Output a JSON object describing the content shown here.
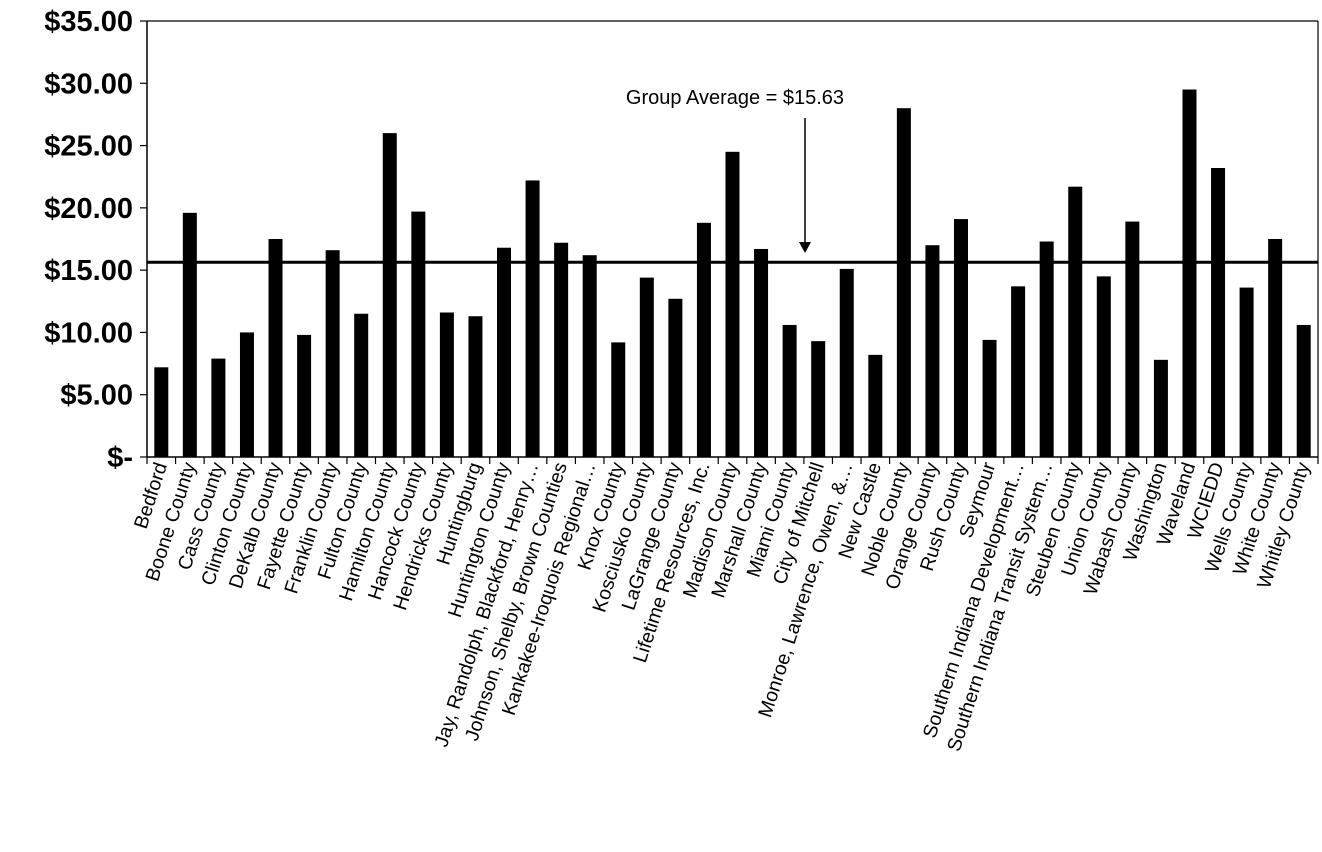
{
  "chart_data": {
    "type": "bar",
    "categories": [
      "Bedford",
      "Boone County",
      "Cass County",
      "Clinton County",
      "DeKalb County",
      "Fayette County",
      "Franklin County",
      "Fulton County",
      "Hamilton County",
      "Hancock County",
      "Hendricks County",
      "Huntingburg",
      "Huntington County",
      "Jay, Randolph, Blackford, Henry…",
      "Johnson, Shelby, Brown Counties",
      "Kankakee-Iroquois Regional…",
      "Knox County",
      "Kosciusko County",
      "LaGrange County",
      "Lifetime Resources, Inc.",
      "Madison County",
      "Marshall County",
      "Miami County",
      "City of Mitchell",
      "Monroe, Lawrence, Owen, &…",
      "New Castle",
      "Noble County",
      "Orange County",
      "Rush County",
      "Seymour",
      "Southern Indiana Development…",
      "Southern Indiana Transit System…",
      "Steuben County",
      "Union County",
      "Wabash County",
      "Washington",
      "Waveland",
      "WCIEDD",
      "Wells County",
      "White County",
      "Whitley County"
    ],
    "values": [
      7.2,
      19.6,
      7.9,
      10.0,
      17.5,
      9.8,
      16.6,
      11.5,
      26.0,
      19.7,
      11.6,
      11.3,
      16.8,
      22.2,
      17.2,
      16.2,
      9.2,
      14.4,
      12.7,
      18.8,
      24.5,
      16.7,
      10.6,
      9.3,
      15.1,
      8.2,
      28.0,
      17.0,
      19.1,
      9.4,
      13.7,
      17.3,
      21.7,
      14.5,
      18.9,
      7.8,
      29.5,
      23.2,
      13.6,
      17.5,
      10.6
    ],
    "ylim": [
      0,
      35
    ],
    "yticks": [
      0,
      5,
      10,
      15,
      20,
      25,
      30,
      35
    ],
    "ytick_labels": [
      "$-",
      "$5.00",
      "$10.00",
      "$15.00",
      "$20.00",
      "$25.00",
      "$30.00",
      "$35.00"
    ],
    "reference_line": {
      "value": 15.63,
      "label": "Group Average = $15.63"
    },
    "bar_color": "#000000",
    "grid": false,
    "legend": "none"
  }
}
